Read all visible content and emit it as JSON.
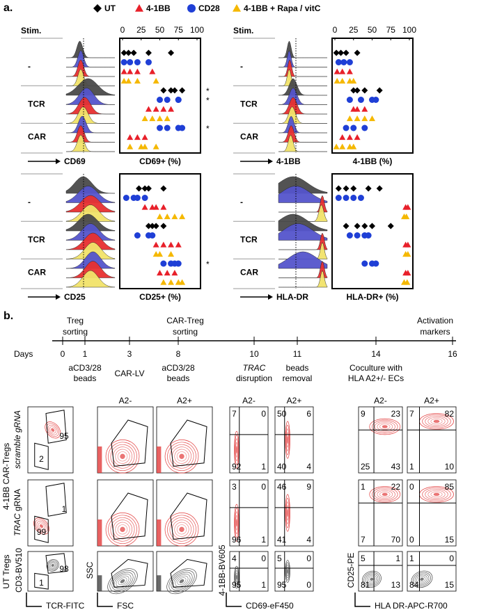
{
  "a": {
    "label": "a.",
    "legend": [
      "UT",
      "4-1BB",
      "CD28",
      "4-1BB + Rapa / vitC"
    ],
    "colors": [
      "#000000",
      "#e8202a",
      "#1f3fd6",
      "#f5b800"
    ],
    "panels": [
      {
        "stim": "Stim.",
        "groups": [
          "-",
          "TCR",
          "CAR"
        ],
        "marker": "CD69",
        "xlabel": "CD69+ (%)",
        "xlim": [
          0,
          100
        ],
        "xticks": [
          0,
          25,
          50,
          75,
          100
        ],
        "values": [
          [
            [
              2,
              8,
              15,
              35,
              65
            ],
            [
              2,
              10,
              20,
              40
            ],
            [
              2,
              10,
              20,
              35
            ],
            [
              2,
              8,
              20,
              45
            ]
          ],
          [
            [
              55,
              65,
              70,
              80
            ],
            [
              35,
              45,
              55,
              65
            ],
            [
              50,
              60,
              75,
              75
            ],
            [
              30,
              40,
              50,
              60
            ]
          ],
          [
            null,
            [
              10,
              20,
              30
            ],
            [
              50,
              60,
              75,
              80
            ],
            [
              10,
              25,
              30,
              45
            ]
          ]
        ],
        "sig": [
          [
            null,
            null,
            null,
            null
          ],
          [
            "*",
            null,
            "*",
            null
          ],
          [
            null,
            null,
            "*",
            null
          ]
        ]
      },
      {
        "stim": "Stim.",
        "groups": [
          "-",
          "TCR",
          "CAR"
        ],
        "marker": "4-1BB",
        "xlabel": "4-1BB (%)",
        "xlim": [
          0,
          100
        ],
        "xticks": [
          0,
          25,
          50,
          75,
          100
        ],
        "values": [
          [
            [
              2,
              8,
              15,
              30
            ],
            [
              3,
              10,
              20
            ],
            [
              5,
              12,
              20
            ],
            [
              3,
              10,
              20,
              25
            ]
          ],
          [
            [
              25,
              30,
              40,
              60
            ],
            [
              25,
              30,
              40
            ],
            [
              20,
              35,
              50,
              55
            ],
            [
              20,
              30,
              40,
              50
            ]
          ],
          [
            null,
            [
              10,
              20,
              30
            ],
            [
              15,
              25,
              40
            ],
            [
              2,
              10,
              20,
              25
            ]
          ]
        ],
        "sig": [
          [
            null,
            null,
            null,
            null
          ],
          [
            null,
            null,
            null,
            null
          ],
          [
            null,
            null,
            null,
            null
          ]
        ]
      },
      {
        "groups": [
          "-",
          "TCR",
          "CAR"
        ],
        "marker": "CD25",
        "xlabel": "CD25+ (%)",
        "xlim": [
          0,
          100
        ],
        "values": [
          [
            [
              22,
              30,
              35,
              55
            ],
            [
              30,
              40,
              45,
              55
            ],
            [
              5,
              15,
              20,
              30
            ],
            [
              50,
              60,
              70,
              80
            ]
          ],
          [
            [
              35,
              40,
              45,
              55
            ],
            [
              45,
              55,
              65,
              75
            ],
            [
              20,
              35,
              40
            ],
            [
              45,
              50,
              65
            ]
          ],
          [
            null,
            [
              50,
              60,
              70
            ],
            [
              55,
              65,
              70,
              75
            ],
            [
              55,
              65,
              75,
              80
            ]
          ]
        ],
        "sig": [
          [
            null,
            null,
            null,
            null
          ],
          [
            null,
            null,
            null,
            null
          ],
          [
            null,
            null,
            "*",
            null
          ]
        ]
      },
      {
        "groups": [
          "-",
          "TCR",
          "CAR"
        ],
        "marker": "HLA-DR",
        "xlabel": "HLA-DR+ (%)",
        "xlim": [
          0,
          100
        ],
        "values": [
          [
            [
              5,
              15,
              25,
              45,
              60
            ],
            [
              95,
              98
            ],
            [
              5,
              15,
              25,
              35
            ],
            [
              93,
              96
            ]
          ],
          [
            [
              15,
              30,
              40,
              50,
              75
            ],
            [
              95,
              98
            ],
            [
              20,
              30,
              40,
              45
            ],
            [
              95,
              98
            ]
          ],
          [
            null,
            [
              95,
              98
            ],
            [
              40,
              50,
              55
            ],
            [
              93,
              97
            ]
          ]
        ],
        "sig": [
          [
            null,
            null,
            null,
            null
          ],
          [
            null,
            null,
            null,
            null
          ],
          [
            null,
            null,
            null,
            null
          ]
        ]
      }
    ]
  },
  "b": {
    "label": "b.",
    "days_label": "Days",
    "timeline": [
      {
        "day": 0,
        "above": [
          "Treg",
          "sorting"
        ]
      },
      {
        "day": 1,
        "below": [
          "aCD3/28",
          "beads"
        ]
      },
      {
        "day": 3,
        "below": [
          "CAR-LV"
        ]
      },
      {
        "day": 8,
        "above": [
          "CAR-Treg",
          "sorting"
        ],
        "below": [
          "aCD3/28",
          "beads"
        ]
      },
      {
        "day": 10,
        "below": [
          "TRAC",
          "disruption"
        ]
      },
      {
        "day": 11,
        "below": [
          "beads",
          "removal"
        ]
      },
      {
        "day": 14,
        "below": [
          "Coculture with",
          "HLA A2+/- ECs"
        ]
      },
      {
        "day": 16,
        "above": [
          "Activation",
          "markers"
        ]
      }
    ],
    "flow": {
      "headers": [
        "A2-",
        "A2+",
        "A2-",
        "A2+",
        "A2-",
        "A2+"
      ],
      "row_group": "4-1BB CAR-Tregs",
      "row_labels": [
        [
          "scramble gRNA"
        ],
        [
          "TRAC",
          " gRNA"
        ]
      ],
      "ut_label": "UT Tregs",
      "y_labels": [
        "CD3-BV510",
        "SSC",
        "4-1BB-BV605",
        "CD25-PE"
      ],
      "x_labels": [
        "TCR-FITC",
        "FSC",
        "CD69-eF450",
        "HLA DR-APC-R700"
      ],
      "gates": [
        [
          95,
          2
        ],
        [
          1,
          99
        ],
        [
          98,
          1
        ]
      ],
      "quadrants": [
        [
          [
            7,
            0,
            92,
            1
          ],
          [
            50,
            6,
            40,
            4
          ],
          [
            9,
            23,
            25,
            43
          ],
          [
            7,
            82,
            1,
            10
          ]
        ],
        [
          [
            3,
            0,
            96,
            1
          ],
          [
            46,
            9,
            41,
            4
          ],
          [
            1,
            22,
            7,
            70
          ],
          [
            0,
            85,
            0,
            15
          ]
        ],
        [
          [
            4,
            0,
            95,
            1
          ],
          [
            5,
            0,
            95,
            0
          ],
          [
            5,
            1,
            81,
            13
          ],
          [
            1,
            0,
            84,
            15
          ]
        ]
      ]
    }
  }
}
